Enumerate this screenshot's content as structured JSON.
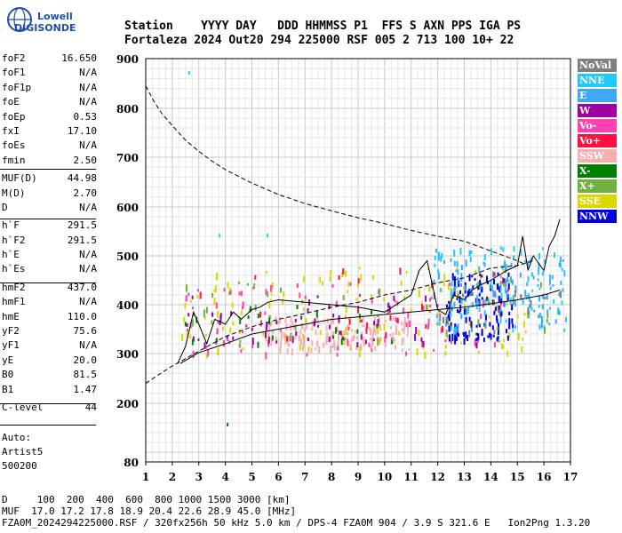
{
  "logo": {
    "line1": "Lowell",
    "line2": "DIGISONDE"
  },
  "header": {
    "labels": "Station    YYYY DAY   DDD HHMMSS P1  FFS S AXN PPS IGA PS",
    "values": "Fortaleza 2024 Out20 294 225000 RSF 005 2 713 100 10+ 22"
  },
  "params": [
    {
      "k": "foF2",
      "v": "16.650"
    },
    {
      "k": "foF1",
      "v": "N/A"
    },
    {
      "k": "foF1p",
      "v": "N/A"
    },
    {
      "k": "foE",
      "v": "N/A"
    },
    {
      "k": "foEp",
      "v": "0.53"
    },
    {
      "k": "fxI",
      "v": "17.10"
    },
    {
      "k": "foEs",
      "v": "N/A"
    },
    {
      "k": "fmin",
      "v": "2.50"
    },
    {
      "k": "MUF(D)",
      "v": "44.98"
    },
    {
      "k": "M(D)",
      "v": "2.70"
    },
    {
      "k": "D",
      "v": "N/A"
    },
    {
      "k": "h`F",
      "v": "291.5"
    },
    {
      "k": "h`F2",
      "v": "291.5"
    },
    {
      "k": "h`E",
      "v": "N/A"
    },
    {
      "k": "h`Es",
      "v": "N/A"
    },
    {
      "k": "hmF2",
      "v": "437.0"
    },
    {
      "k": "hmF1",
      "v": "N/A"
    },
    {
      "k": "hmE",
      "v": "110.0"
    },
    {
      "k": "yF2",
      "v": "75.6"
    },
    {
      "k": "yF1",
      "v": "N/A"
    },
    {
      "k": "yE",
      "v": "20.0"
    },
    {
      "k": "B0",
      "v": "81.5"
    },
    {
      "k": "B1",
      "v": "1.47"
    },
    {
      "k": "C-level",
      "v": "44"
    }
  ],
  "auto": {
    "line1": "Auto:",
    "line2": "Artist5",
    "line3": "500200"
  },
  "legend": [
    {
      "label": "NoVal",
      "color": "#808080"
    },
    {
      "label": "NNE",
      "color": "#20c8ff"
    },
    {
      "label": "E",
      "color": "#40a8f0"
    },
    {
      "label": "W",
      "color": "#a000a0"
    },
    {
      "label": "Vo-",
      "color": "#ff40b0"
    },
    {
      "label": "Vo+",
      "color": "#ff1040"
    },
    {
      "label": "SSW",
      "color": "#f4b0b0"
    },
    {
      "label": "X-",
      "color": "#008000"
    },
    {
      "label": "X+",
      "color": "#70b040"
    },
    {
      "label": "SSE",
      "color": "#d8d800"
    },
    {
      "label": "NNW",
      "color": "#0000e0"
    }
  ],
  "footer": {
    "line1": "D     100  200  400  600  800 1000 1500 3000 [km]",
    "line2": "MUF  17.0 17.2 17.8 18.9 20.4 22.6 28.9 45.0 [MHz]",
    "line3": "FZA0M_2024294225000.RSF / 320fx256h 50 kHz 5.0 km / DPS-4 FZA0M 904 / 3.9 S 321.6 E   Ion2Png 1.3.20"
  },
  "chart_data": {
    "type": "scatter",
    "title": "",
    "xlabel": "",
    "ylabel": "",
    "xlim": [
      1,
      17
    ],
    "ylim": [
      80,
      900
    ],
    "xticks": [
      1,
      2,
      3,
      4,
      5,
      6,
      7,
      8,
      9,
      10,
      11,
      12,
      13,
      14,
      15,
      16,
      17
    ],
    "yticks": [
      80,
      200,
      300,
      400,
      500,
      600,
      700,
      800,
      900
    ],
    "grid": true,
    "series": [
      {
        "kind": "dashed",
        "x": [
          1,
          1.5,
          2,
          3,
          4,
          5,
          6,
          7,
          8,
          9,
          10,
          11,
          12,
          13,
          14,
          15,
          15.6
        ],
        "y": [
          240,
          258,
          275,
          305,
          335,
          355,
          370,
          382,
          395,
          405,
          420,
          430,
          445,
          455,
          475,
          480,
          490
        ]
      },
      {
        "kind": "dashed",
        "x": [
          1,
          1.3,
          1.6,
          2,
          2.5,
          3,
          3.5,
          4,
          5,
          6,
          7,
          8,
          9,
          10,
          11,
          12,
          13,
          14,
          15,
          15.2
        ],
        "y": [
          845,
          815,
          790,
          765,
          735,
          712,
          692,
          675,
          648,
          625,
          607,
          592,
          578,
          566,
          552,
          540,
          530,
          510,
          490,
          485
        ]
      },
      {
        "kind": "solid",
        "x": [
          2.3,
          3,
          4,
          5,
          6,
          7,
          8,
          9,
          10,
          11,
          12,
          13,
          14,
          15,
          16,
          16.6
        ],
        "y": [
          280,
          302,
          320,
          340,
          350,
          360,
          370,
          375,
          380,
          385,
          390,
          395,
          402,
          410,
          420,
          430
        ]
      },
      {
        "kind": "solid",
        "x": [
          2.2,
          2.5,
          2.8,
          3,
          3.3,
          3.6,
          4,
          4.3,
          4.6,
          5,
          5.3,
          5.6,
          6,
          7,
          8,
          9,
          10,
          11,
          11.3,
          11.6,
          12,
          12.3,
          12.6,
          13,
          13.3,
          13.6,
          14,
          14.3,
          14.6,
          15,
          15.2,
          15.4,
          15.6,
          16,
          16.2,
          16.4,
          16.6
        ],
        "y": [
          280,
          315,
          385,
          360,
          320,
          370,
          360,
          385,
          370,
          390,
          395,
          405,
          410,
          405,
          400,
          395,
          385,
          420,
          470,
          490,
          390,
          380,
          420,
          410,
          430,
          440,
          450,
          460,
          470,
          480,
          540,
          470,
          500,
          470,
          520,
          540,
          575
        ]
      }
    ],
    "clouds": [
      {
        "color": "#f4b0b0",
        "x": [
          5.6,
          10.9
        ],
        "y": [
          310,
          380
        ],
        "n": 170
      },
      {
        "color": "#d8d800",
        "x": [
          2.3,
          15.5
        ],
        "y": [
          300,
          480
        ],
        "n": 140
      },
      {
        "color": "#ff40b0",
        "x": [
          2.3,
          14.5
        ],
        "y": [
          300,
          450
        ],
        "n": 90
      },
      {
        "color": "#a000a0",
        "x": [
          2.5,
          13.5
        ],
        "y": [
          320,
          420
        ],
        "n": 60
      },
      {
        "color": "#0000e0",
        "x": [
          12.3,
          14.8
        ],
        "y": [
          330,
          470
        ],
        "n": 120
      },
      {
        "color": "#20c8ff",
        "x": [
          11.8,
          16.8
        ],
        "y": [
          350,
          520
        ],
        "n": 110
      },
      {
        "color": "#40a8f0",
        "x": [
          12.2,
          16.8
        ],
        "y": [
          350,
          500
        ],
        "n": 80
      },
      {
        "color": "#70b040",
        "x": [
          2.4,
          16.5
        ],
        "y": [
          320,
          460
        ],
        "n": 45
      },
      {
        "color": "#008000",
        "x": [
          2.4,
          10.5
        ],
        "y": [
          320,
          400
        ],
        "n": 25
      },
      {
        "color": "#ff1040",
        "x": [
          2.6,
          16.6
        ],
        "y": [
          330,
          480
        ],
        "n": 25
      },
      {
        "color": "#808080",
        "x": [
          11.5,
          16.8
        ],
        "y": [
          340,
          440
        ],
        "n": 20
      }
    ],
    "outliers": [
      {
        "color": "#20c8ff",
        "x": 2.6,
        "y": 875
      },
      {
        "color": "#008000",
        "x": 4.05,
        "y": 160
      },
      {
        "color": "#20c8ff",
        "x": 3.75,
        "y": 545
      },
      {
        "color": "#20c8ff",
        "x": 5.55,
        "y": 545
      }
    ]
  }
}
